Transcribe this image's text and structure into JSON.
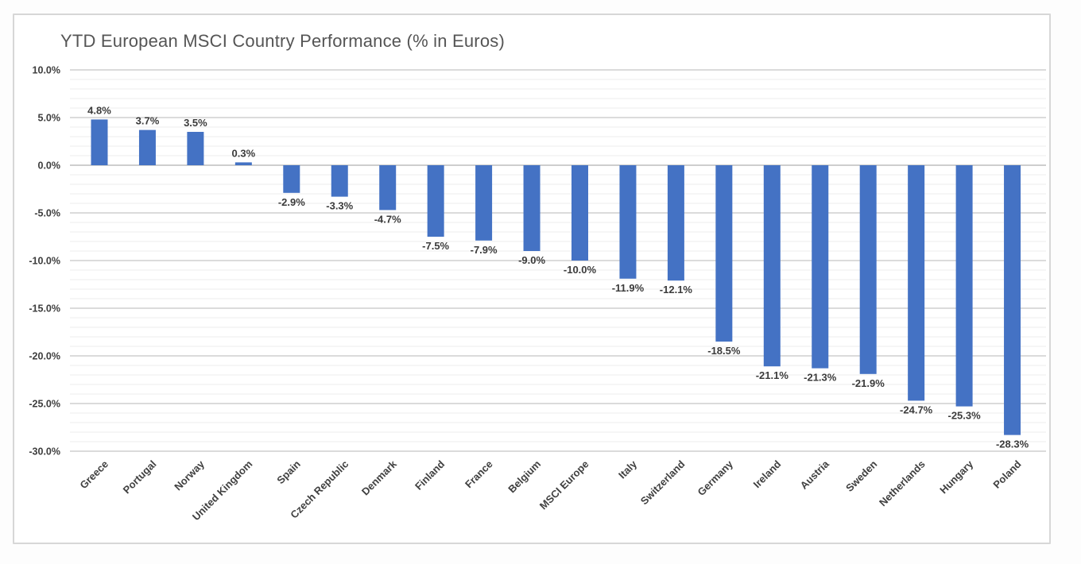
{
  "chart_data": {
    "type": "bar",
    "title": "YTD European MSCI Country Performance (% in Euros)",
    "categories": [
      "Greece",
      "Portugal",
      "Norway",
      "United Kingdom",
      "Spain",
      "Czech Republic",
      "Denmark",
      "Finland",
      "France",
      "Belgium",
      "MSCI Europe",
      "Italy",
      "Switzerland",
      "Germany",
      "Ireland",
      "Austria",
      "Sweden",
      "Netherlands",
      "Hungary",
      "Poland"
    ],
    "values": [
      4.8,
      3.7,
      3.5,
      0.3,
      -2.9,
      -3.3,
      -4.7,
      -7.5,
      -7.9,
      -9.0,
      -10.0,
      -11.9,
      -12.1,
      -18.5,
      -21.1,
      -21.3,
      -21.9,
      -24.7,
      -25.3,
      -28.3
    ],
    "data_labels": [
      "4.8%",
      "3.7%",
      "3.5%",
      "0.3%",
      "-2.9%",
      "-3.3%",
      "-4.7%",
      "-7.5%",
      "-7.9%",
      "-9.0%",
      "-10.0%",
      "-11.9%",
      "-12.1%",
      "-18.5%",
      "-21.1%",
      "-21.3%",
      "-21.9%",
      "-24.7%",
      "-25.3%",
      "-28.3%"
    ],
    "y_tick_labels": [
      "10.0%",
      "5.0%",
      "0.0%",
      "-5.0%",
      "-10.0%",
      "-15.0%",
      "-20.0%",
      "-25.0%",
      "-30.0%"
    ],
    "ylim": [
      -30,
      10
    ],
    "y_major_step": 5,
    "y_minor_step": 1,
    "xlabel": "",
    "ylabel": "",
    "grid": true,
    "legend": false,
    "colors": {
      "bar": "#4472c4",
      "major_gridline": "#cfcfcf",
      "minor_gridline": "#ededed",
      "zero_axis_line": "#bdbdbd",
      "tick_text": "#3d3d3d",
      "data_label_text": "#3b3b3b",
      "category_text": "#404040",
      "title_text": "#555555",
      "frame_border": "#d7d7d7"
    }
  }
}
